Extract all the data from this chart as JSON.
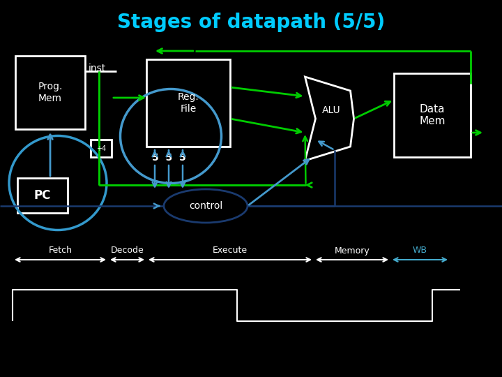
{
  "title": "Stages of datapath (5/5)",
  "title_color": "#00ccff",
  "bg_color": "#000000",
  "white": "#ffffff",
  "green": "#00cc00",
  "blue_dark": "#1a3a6e",
  "blue_light": "#4499cc",
  "cyan_circle": "#3399cc",
  "prog_mem_text": "Prog.\nMem",
  "inst_text": "inst",
  "reg_file_text": "Reg.\nFile",
  "data_mem_text": "Data\nMem",
  "alu_text": "ALU",
  "pc_text": "PC",
  "plus4_text": "+4",
  "five_five_five": "5  5  5",
  "control_text": "control",
  "stage_labels": [
    "Fetch",
    "Decode",
    "Execute",
    "Memory",
    "WB"
  ],
  "stage_colors": [
    "#ffffff",
    "#ffffff",
    "#ffffff",
    "#ffffff",
    "#44aacc"
  ]
}
